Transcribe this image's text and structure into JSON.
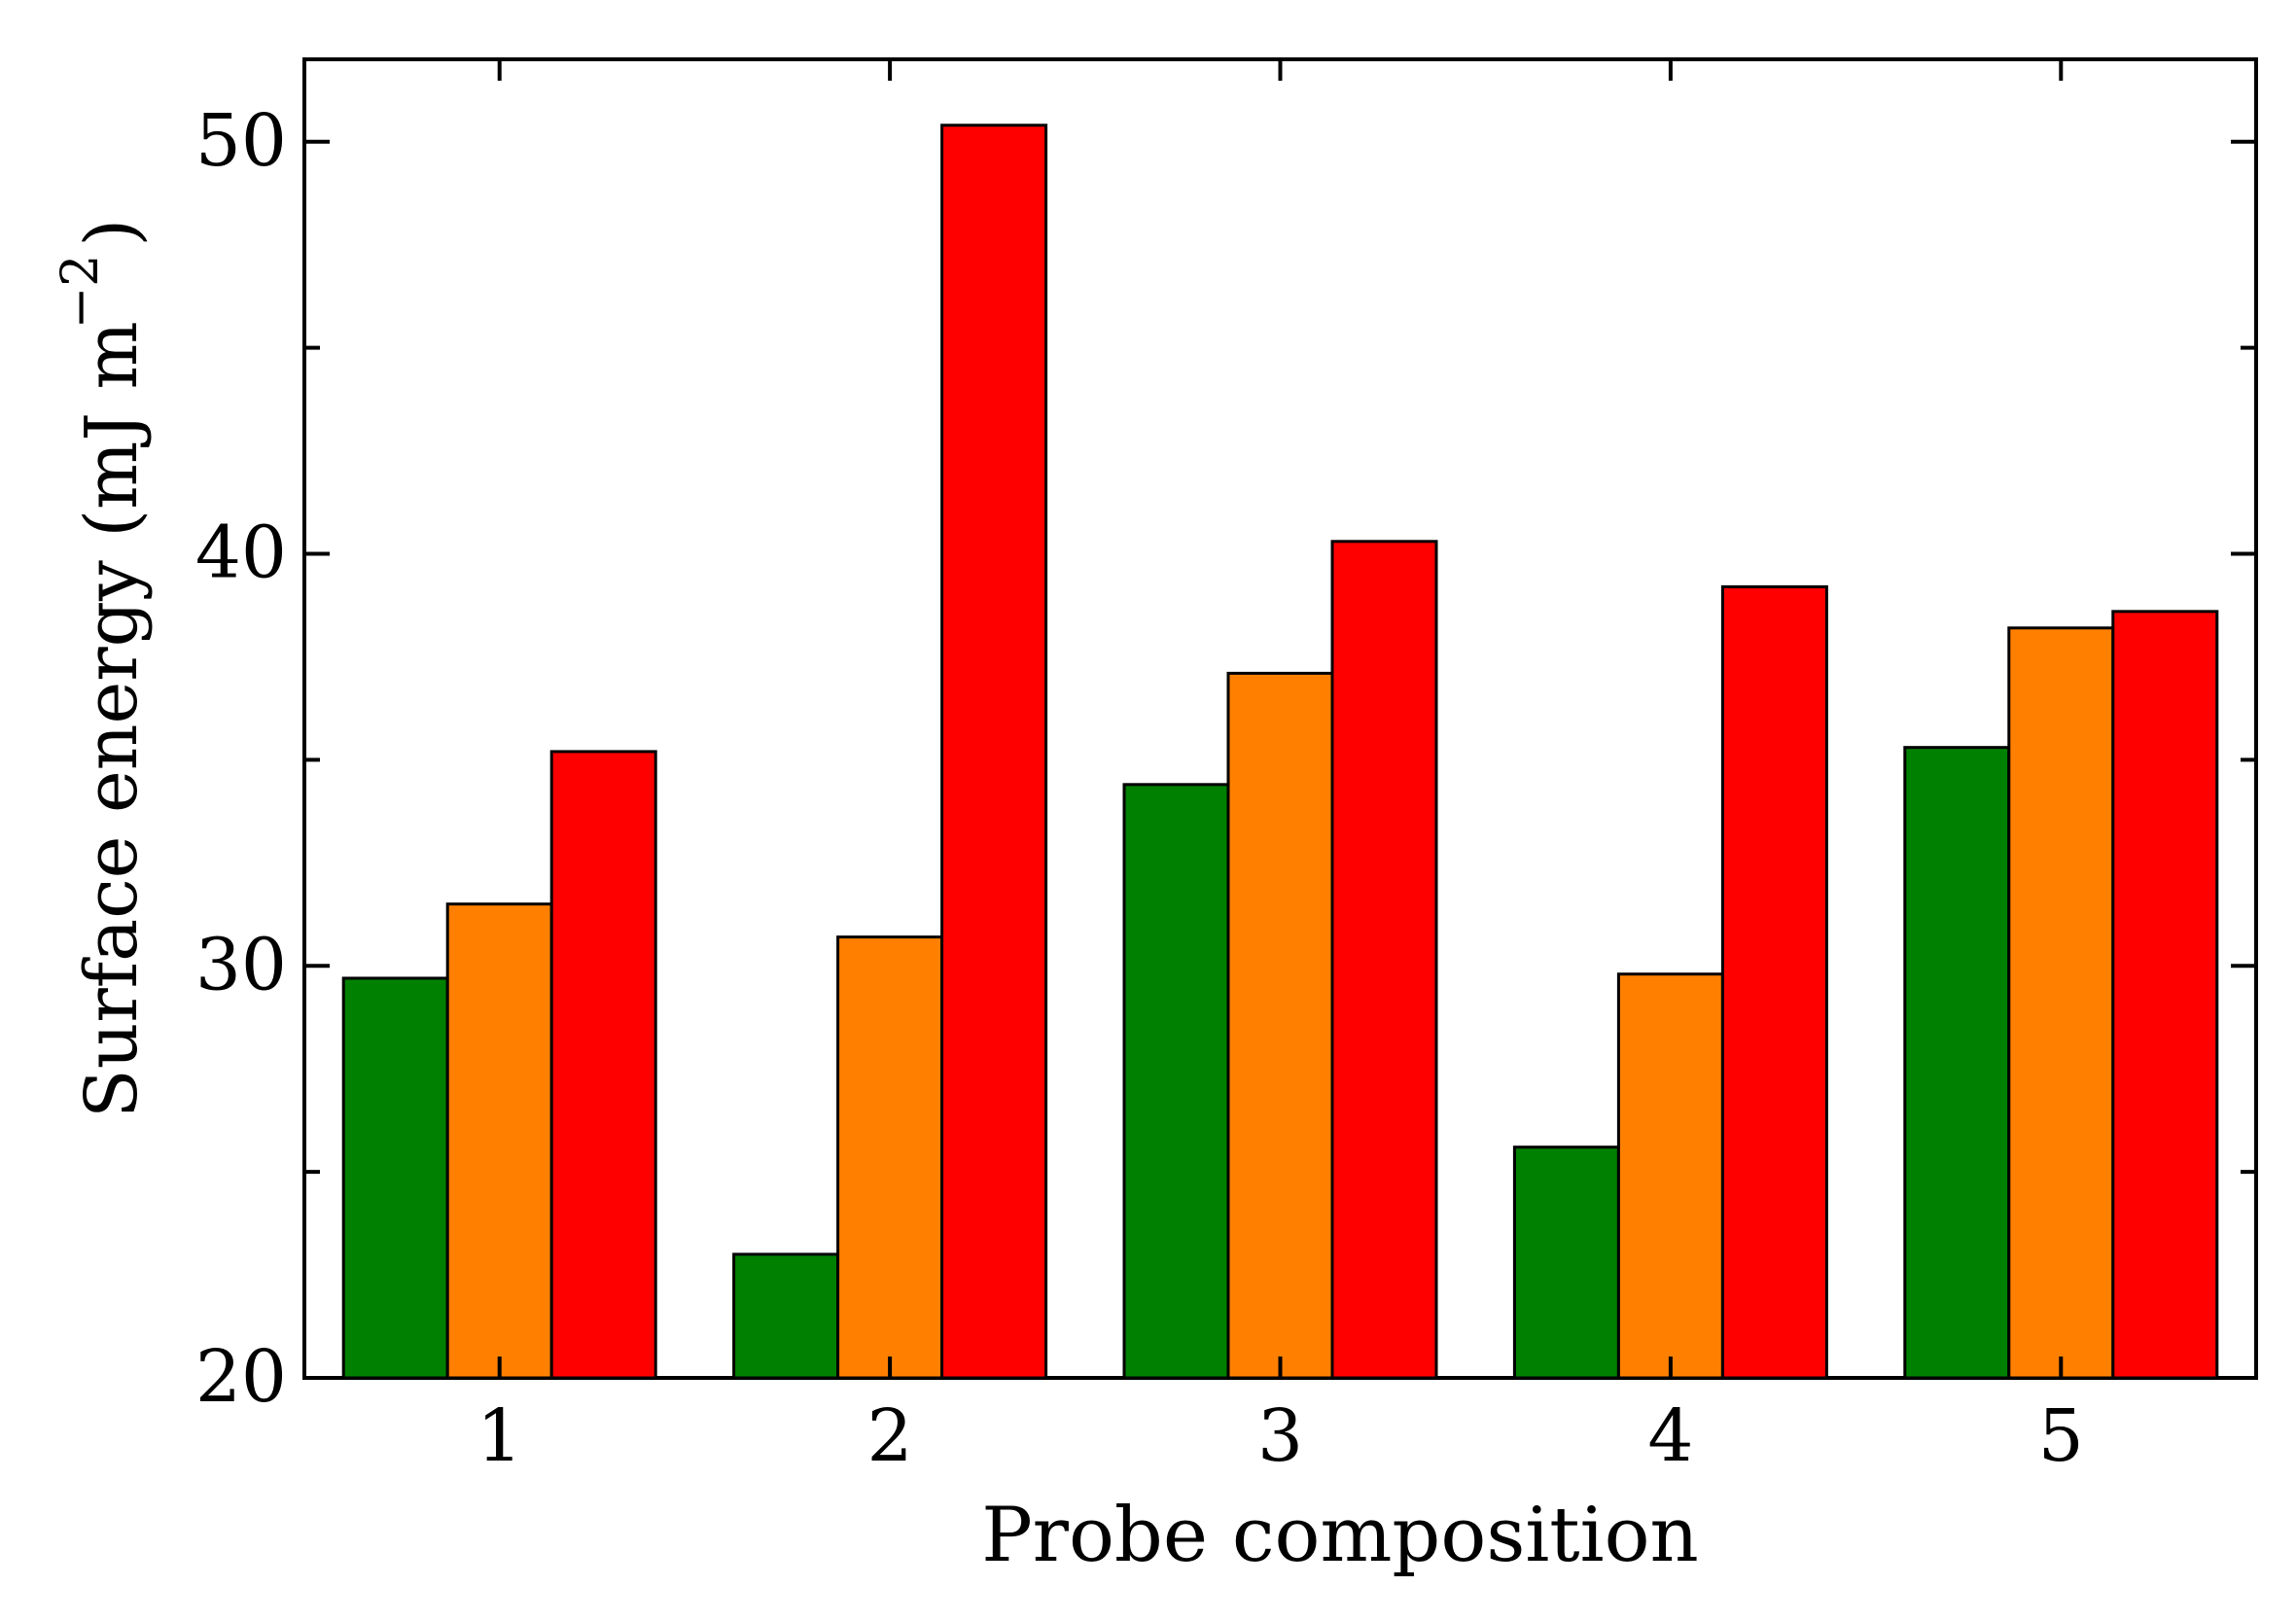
{
  "chart_data": {
    "type": "bar",
    "categories": [
      "1",
      "2",
      "3",
      "4",
      "5"
    ],
    "series": [
      {
        "color": "#008000",
        "values": [
          29.7,
          23.0,
          34.4,
          25.6,
          35.3
        ]
      },
      {
        "color": "#ff8000",
        "values": [
          31.5,
          30.7,
          37.1,
          29.8,
          38.2
        ]
      },
      {
        "color": "#ff0000",
        "values": [
          35.2,
          50.4,
          40.3,
          39.2,
          38.6
        ]
      }
    ],
    "xlabel": "Probe composition",
    "ylabel_main": "Surface energy (mJ m",
    "ylabel_exponent": "−2",
    "ylabel_close": ")",
    "ylim": [
      20,
      52
    ],
    "yticks": [
      "20",
      "30",
      "40",
      "50"
    ],
    "grid": false
  }
}
